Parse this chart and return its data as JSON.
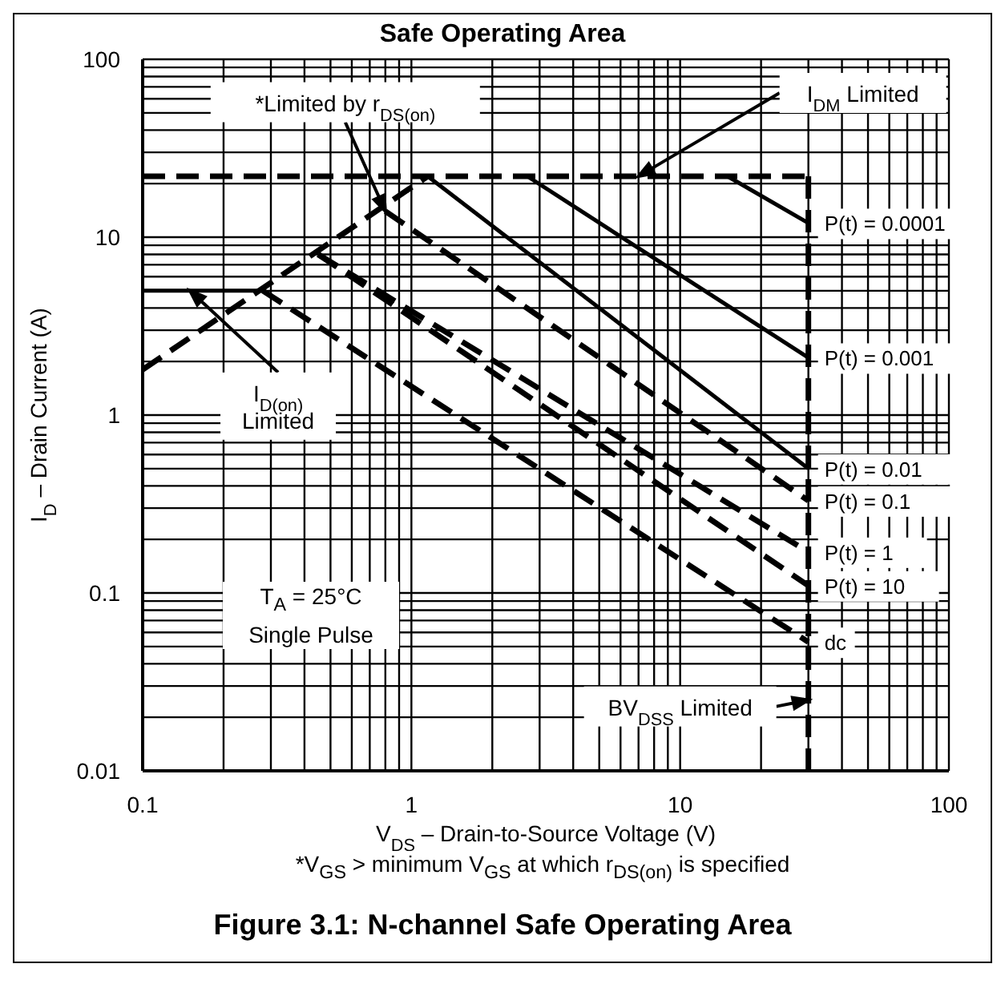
{
  "chart_data": {
    "type": "line",
    "title": "Safe Operating Area",
    "xlabel": "V$_{DS}$  –  Drain-to-Source Voltage (V)",
    "ylabel": "I$_{D}$ – Drain Current (A)",
    "log": "xy",
    "grid": true,
    "marker": "none",
    "xlim": [
      0.1,
      100
    ],
    "ylim": [
      0.01,
      100
    ],
    "xticks": [
      0.1,
      {
        "value": 0.2,
        "label": null
      },
      {
        "value": 0.3,
        "label": null
      },
      {
        "value": 0.4,
        "label": null
      },
      {
        "value": 0.5,
        "label": null
      },
      {
        "value": 0.6,
        "label": null
      },
      {
        "value": 0.7,
        "label": null
      },
      {
        "value": 0.8,
        "label": null
      },
      {
        "value": 0.9,
        "label": null
      },
      1,
      {
        "value": 2,
        "label": null
      },
      {
        "value": 3,
        "label": null
      },
      {
        "value": 4,
        "label": null
      },
      {
        "value": 5,
        "label": null
      },
      {
        "value": 6,
        "label": null
      },
      {
        "value": 7,
        "label": null
      },
      {
        "value": 8,
        "label": null
      },
      {
        "value": 9,
        "label": null
      },
      10,
      {
        "value": 20,
        "label": null
      },
      {
        "value": 30,
        "label": null
      },
      {
        "value": 40,
        "label": null
      },
      {
        "value": 50,
        "label": null
      },
      {
        "value": 60,
        "label": null
      },
      {
        "value": 70,
        "label": null
      },
      {
        "value": 80,
        "label": null
      },
      {
        "value": 90,
        "label": null
      },
      100
    ],
    "yticks": [
      0.01,
      {
        "value": 0.02,
        "label": null
      },
      {
        "value": 0.03,
        "label": null
      },
      {
        "value": 0.04,
        "label": null
      },
      {
        "value": 0.05,
        "label": null
      },
      {
        "value": 0.06,
        "label": null
      },
      {
        "value": 0.07,
        "label": null
      },
      {
        "value": 0.08,
        "label": null
      },
      {
        "value": 0.09,
        "label": null
      },
      0.1,
      {
        "value": 0.2,
        "label": null
      },
      {
        "value": 0.3,
        "label": null
      },
      {
        "value": 0.4,
        "label": null
      },
      {
        "value": 0.5,
        "label": null
      },
      {
        "value": 0.6,
        "label": null
      },
      {
        "value": 0.7,
        "label": null
      },
      {
        "value": 0.8,
        "label": null
      },
      {
        "value": 0.9,
        "label": null
      },
      1,
      {
        "value": 2,
        "label": null
      },
      {
        "value": 3,
        "label": null
      },
      {
        "value": 4,
        "label": null
      },
      {
        "value": 5,
        "label": null
      },
      {
        "value": 6,
        "label": null
      },
      {
        "value": 7,
        "label": null
      },
      {
        "value": 8,
        "label": null
      },
      {
        "value": 9,
        "label": null
      },
      10,
      {
        "value": 20,
        "label": null
      },
      {
        "value": 30,
        "label": null
      },
      {
        "value": 40,
        "label": null
      },
      {
        "value": 50,
        "label": null
      },
      {
        "value": 60,
        "label": null
      },
      {
        "value": 70,
        "label": null
      },
      {
        "value": 80,
        "label": null
      },
      {
        "value": 90,
        "label": null
      },
      100
    ],
    "series": [
      {
        "color": "#000000",
        "line_style": "dashed",
        "x": [
          0.1,
          30
        ],
        "values": [
          22,
          22
        ]
      },
      {
        "color": "#000000",
        "line_style": "solid",
        "x": [
          0.1,
          0.28
        ],
        "values": [
          5,
          5
        ]
      },
      {
        "color": "#000000",
        "line_style": "dashed",
        "x": [
          0.1,
          1.15
        ],
        "values": [
          1.8,
          22
        ]
      },
      {
        "color": "#000000",
        "line_style": "dashed",
        "x": [
          30,
          30
        ],
        "values": [
          22,
          0.01
        ]
      },
      {
        "name": "P(t) = 0.0001",
        "color": "#000000",
        "line_style": "solid",
        "x": [
          15,
          30
        ],
        "values": [
          22,
          12
        ]
      },
      {
        "name": "P(t) = 0.001",
        "color": "#000000",
        "line_style": "solid",
        "x": [
          2.7,
          30
        ],
        "values": [
          22,
          2.1
        ]
      },
      {
        "name": "P(t) = 0.01",
        "color": "#000000",
        "line_style": "solid",
        "x": [
          1.15,
          30
        ],
        "values": [
          22,
          0.5
        ]
      },
      {
        "name": "P(t) = 0.1",
        "color": "#000000",
        "line_style": "dashed",
        "x": [
          0.8,
          30
        ],
        "values": [
          14,
          0.33
        ]
      },
      {
        "name": "P(t) = 1",
        "color": "#000000",
        "line_style": "dashed",
        "x": [
          0.45,
          30
        ],
        "values": [
          8,
          0.17
        ]
      },
      {
        "name": "P(t) = 10",
        "color": "#000000",
        "line_style": "dashed",
        "x": [
          0.45,
          30
        ],
        "values": [
          8,
          0.11
        ]
      },
      {
        "name": "dc",
        "color": "#000000",
        "line_style": "dashed",
        "x": [
          0.28,
          30
        ],
        "values": [
          5,
          0.053
        ]
      }
    ],
    "annotations": [
      {
        "text": "*Limited by r$_{DS(on)}$",
        "x": 0.8,
        "y": 14
      },
      {
        "text": "I$_{DM}$ Limited",
        "x": 7,
        "y": 22
      },
      {
        "text": "I$_{D(on)}$\nLimited",
        "x": 0.15,
        "y": 5
      },
      {
        "text": "BV$_{DSS}$ Limited",
        "x": 30,
        "y": 0.025
      },
      "T$_{A}$ = 25°C\nSingle Pulse",
      "*V$_{GS}$ > minimum V$_{GS}$ at which r$_{DS(on)}$ is specified",
      "Figure 3.1: N-channel Safe Operating Area"
    ]
  }
}
